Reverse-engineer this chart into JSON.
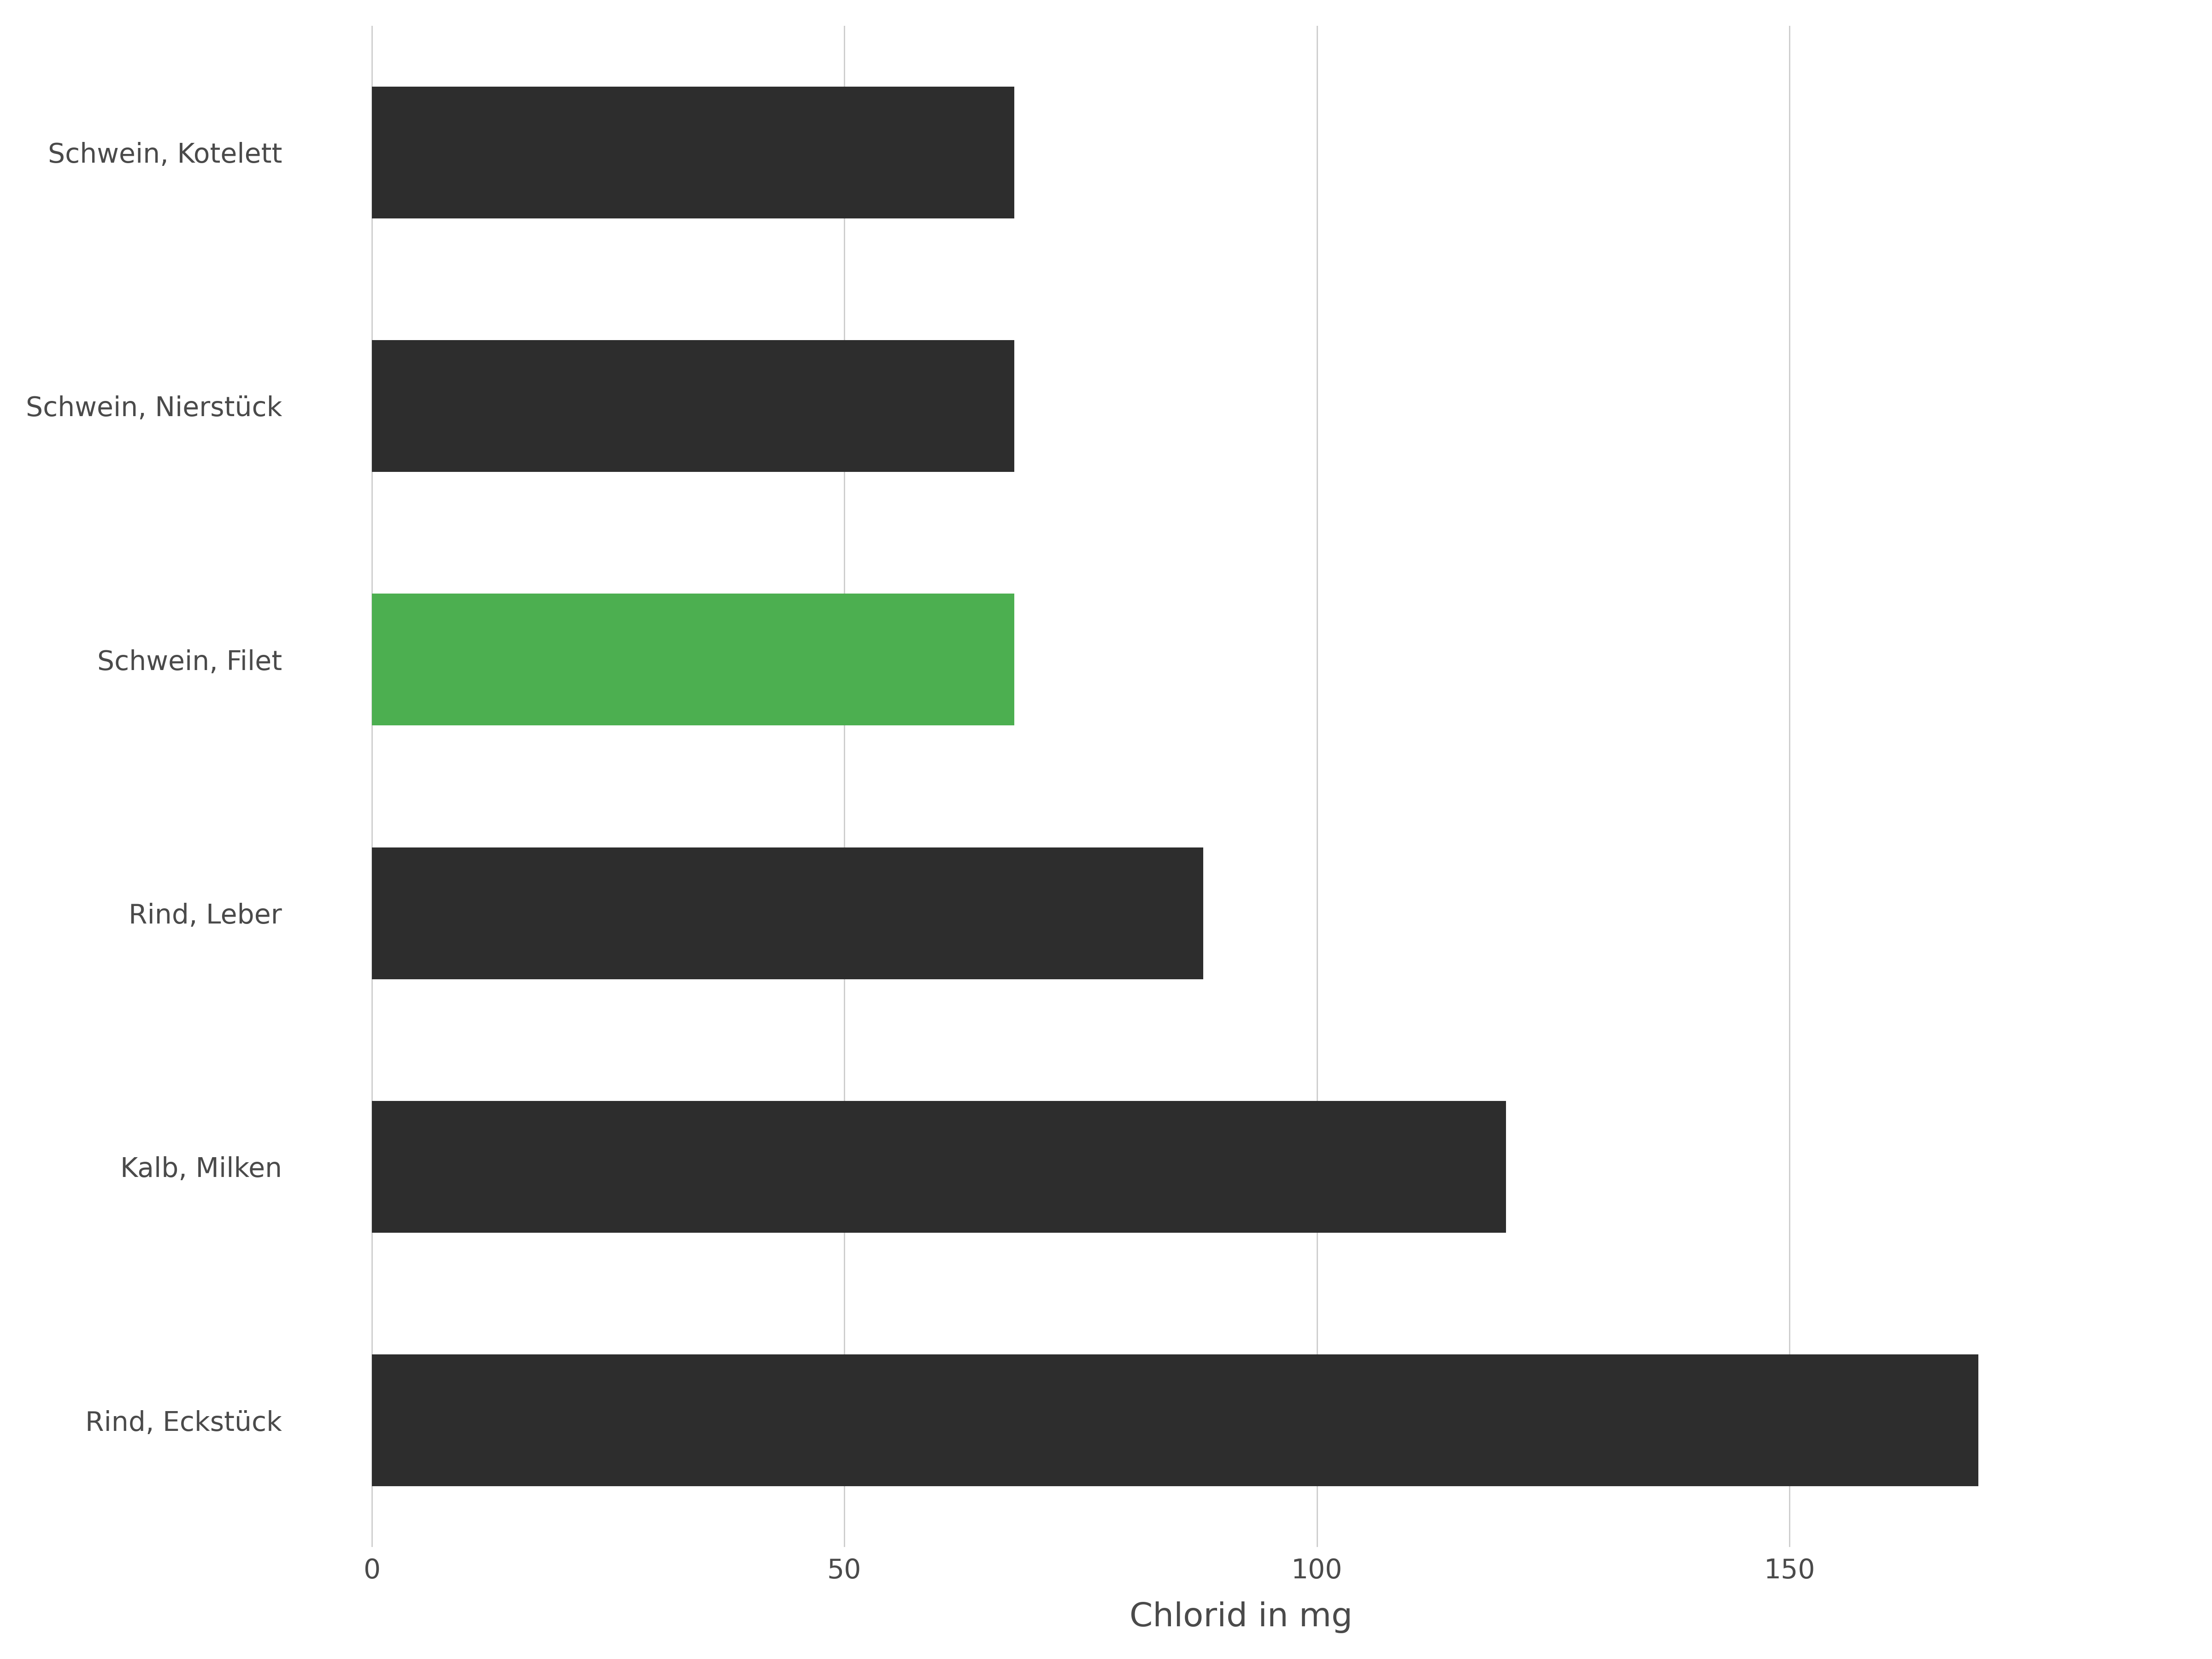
{
  "categories": [
    "Rind, Eckstück",
    "Kalb, Milken",
    "Rind, Leber",
    "Schwein, Filet",
    "Schwein, Nierstück",
    "Schwein, Kotelett"
  ],
  "values": [
    170,
    120,
    88,
    68,
    68,
    68
  ],
  "bar_colors": [
    "#2d2d2d",
    "#2d2d2d",
    "#2d2d2d",
    "#4caf50",
    "#2d2d2d",
    "#2d2d2d"
  ],
  "xlabel": "Chlorid in mg",
  "background_color": "#ffffff",
  "text_color": "#4a4a4a",
  "grid_color": "#cccccc",
  "xlim": [
    -8,
    192
  ],
  "xticks": [
    0,
    50,
    100,
    150
  ],
  "bar_height": 0.52,
  "xlabel_fontsize": 52,
  "tick_fontsize": 42,
  "ytick_fontsize": 42
}
